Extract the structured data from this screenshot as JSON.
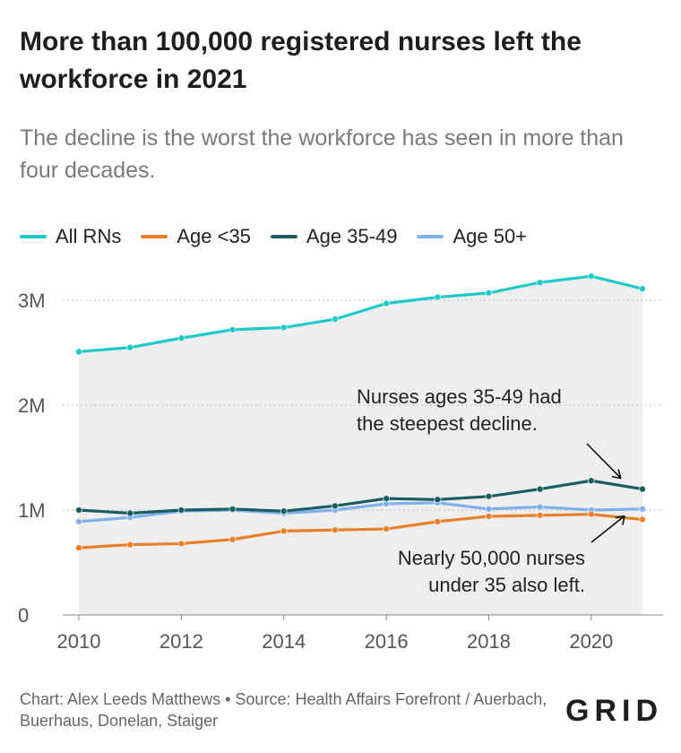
{
  "header": {
    "title": "More than 100,000 registered nurses left the workforce in 2021",
    "subtitle": "The decline is the worst the workforce has seen in more than four decades."
  },
  "footer": {
    "credit": "Chart: Alex Leeds Matthews • Source: Health Affairs Forefront / Auerbach, Buerhaus, Donelan, Staiger",
    "logo": "GRID"
  },
  "chart_data": {
    "type": "line",
    "title": "More than 100,000 registered nurses left the workforce in 2021",
    "subtitle": "The decline is the worst the workforce has seen in more than four decades.",
    "xlabel": "",
    "ylabel": "",
    "x": [
      2010,
      2011,
      2012,
      2013,
      2014,
      2015,
      2016,
      2017,
      2018,
      2019,
      2020,
      2021
    ],
    "xticks": [
      2010,
      2012,
      2014,
      2016,
      2018,
      2020
    ],
    "xtick_labels": [
      "2010",
      "2012",
      "2014",
      "2016",
      "2018",
      "2020"
    ],
    "xlim": [
      2010,
      2021
    ],
    "ylim": [
      0,
      3000000
    ],
    "yticks": [
      0,
      1000000,
      2000000,
      3000000
    ],
    "ytick_labels": [
      "0",
      "1M",
      "2M",
      "3M"
    ],
    "grid": "horizontal dotted",
    "legend_position": "top-left",
    "shaded_area_under": "All RNs",
    "series": [
      {
        "name": "All RNs",
        "color": "#1ec9c9",
        "values": [
          2510000,
          2550000,
          2640000,
          2720000,
          2740000,
          2820000,
          2970000,
          3030000,
          3070000,
          3170000,
          3230000,
          3110000
        ]
      },
      {
        "name": "Age <35",
        "color": "#e8802a",
        "values": [
          640000,
          670000,
          680000,
          720000,
          800000,
          810000,
          820000,
          890000,
          940000,
          950000,
          960000,
          910000
        ]
      },
      {
        "name": "Age 35-49",
        "color": "#1a5e63",
        "values": [
          1000000,
          970000,
          1000000,
          1010000,
          990000,
          1040000,
          1110000,
          1100000,
          1130000,
          1200000,
          1280000,
          1200000
        ]
      },
      {
        "name": "Age 50+",
        "color": "#7fb0ea",
        "values": [
          890000,
          930000,
          990000,
          1000000,
          970000,
          1000000,
          1060000,
          1070000,
          1010000,
          1030000,
          1000000,
          1010000
        ]
      }
    ],
    "annotations": [
      {
        "lines": [
          "Nurses ages 35-49 had",
          "the steepest decline."
        ],
        "target_series": "Age 35-49",
        "target_x": 2021
      },
      {
        "lines": [
          "Nearly 50,000 nurses",
          "under 35 also left."
        ],
        "target_series": "Age <35",
        "target_x": 2021
      }
    ]
  }
}
